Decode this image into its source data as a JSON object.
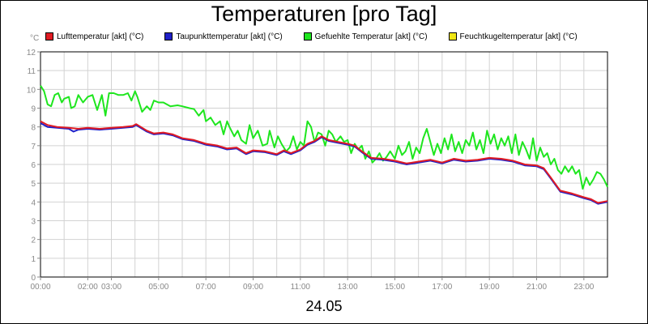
{
  "chart_data": {
    "type": "line",
    "title": "Temperaturen [pro Tag]",
    "date_label": "24.05",
    "unit": "°C",
    "ylim": [
      0,
      12
    ],
    "y_ticks": [
      "0",
      "1",
      "2",
      "3",
      "4",
      "5",
      "6",
      "7",
      "8",
      "9",
      "10",
      "11",
      "12"
    ],
    "x_range_hours": [
      0,
      24
    ],
    "x_ticks": [
      {
        "hour": 0,
        "label": "00:00"
      },
      {
        "hour": 2,
        "label": "02:00"
      },
      {
        "hour": 3,
        "label": "03:00"
      },
      {
        "hour": 5,
        "label": "05:00"
      },
      {
        "hour": 7,
        "label": "07:00"
      },
      {
        "hour": 9,
        "label": "09:00"
      },
      {
        "hour": 11,
        "label": "11:00"
      },
      {
        "hour": 13,
        "label": "13:00"
      },
      {
        "hour": 15,
        "label": "15:00"
      },
      {
        "hour": 17,
        "label": "17:00"
      },
      {
        "hour": 19,
        "label": "19:00"
      },
      {
        "hour": 21,
        "label": "21:00"
      },
      {
        "hour": 23,
        "label": "23:00"
      }
    ],
    "grid": true,
    "legend_position": "top",
    "series": [
      {
        "name": "Lufttemperatur [akt] (°C)",
        "color": "#e01b23",
        "points": [
          [
            0,
            8.3
          ],
          [
            0.3,
            8.1
          ],
          [
            0.7,
            8.0
          ],
          [
            1.2,
            7.95
          ],
          [
            1.6,
            7.9
          ],
          [
            2.0,
            7.95
          ],
          [
            2.5,
            7.9
          ],
          [
            3.0,
            7.95
          ],
          [
            3.5,
            8.0
          ],
          [
            3.9,
            8.05
          ],
          [
            4.05,
            8.15
          ],
          [
            4.5,
            7.8
          ],
          [
            4.8,
            7.65
          ],
          [
            5.2,
            7.7
          ],
          [
            5.6,
            7.6
          ],
          [
            6.0,
            7.4
          ],
          [
            6.5,
            7.3
          ],
          [
            7.0,
            7.1
          ],
          [
            7.5,
            7.0
          ],
          [
            7.9,
            6.85
          ],
          [
            8.3,
            6.9
          ],
          [
            8.7,
            6.6
          ],
          [
            9.0,
            6.75
          ],
          [
            9.5,
            6.7
          ],
          [
            10.0,
            6.55
          ],
          [
            10.3,
            6.75
          ],
          [
            10.6,
            6.6
          ],
          [
            11.0,
            6.8
          ],
          [
            11.3,
            7.1
          ],
          [
            11.6,
            7.25
          ],
          [
            11.9,
            7.5
          ],
          [
            12.2,
            7.3
          ],
          [
            12.6,
            7.2
          ],
          [
            13.0,
            7.1
          ],
          [
            13.3,
            7.0
          ],
          [
            13.6,
            6.7
          ],
          [
            14.0,
            6.35
          ],
          [
            14.5,
            6.3
          ],
          [
            15.0,
            6.2
          ],
          [
            15.5,
            6.05
          ],
          [
            16.0,
            6.15
          ],
          [
            16.5,
            6.25
          ],
          [
            17.0,
            6.1
          ],
          [
            17.5,
            6.3
          ],
          [
            18.0,
            6.2
          ],
          [
            18.5,
            6.25
          ],
          [
            19.0,
            6.35
          ],
          [
            19.5,
            6.3
          ],
          [
            20.0,
            6.2
          ],
          [
            20.5,
            6.0
          ],
          [
            21.0,
            5.95
          ],
          [
            21.3,
            5.8
          ],
          [
            21.6,
            5.3
          ],
          [
            22.0,
            4.6
          ],
          [
            22.5,
            4.45
          ],
          [
            23.0,
            4.25
          ],
          [
            23.3,
            4.15
          ],
          [
            23.6,
            3.95
          ],
          [
            24.0,
            4.05
          ]
        ]
      },
      {
        "name": "Taupunkttemperatur [akt] (°C)",
        "color": "#2020c8",
        "points": [
          [
            0,
            8.2
          ],
          [
            0.3,
            8.0
          ],
          [
            0.7,
            7.95
          ],
          [
            1.2,
            7.9
          ],
          [
            1.4,
            7.75
          ],
          [
            1.6,
            7.85
          ],
          [
            2.0,
            7.9
          ],
          [
            2.5,
            7.85
          ],
          [
            3.0,
            7.9
          ],
          [
            3.5,
            7.95
          ],
          [
            3.9,
            8.0
          ],
          [
            4.05,
            8.1
          ],
          [
            4.5,
            7.75
          ],
          [
            4.8,
            7.6
          ],
          [
            5.2,
            7.65
          ],
          [
            5.6,
            7.55
          ],
          [
            6.0,
            7.35
          ],
          [
            6.5,
            7.25
          ],
          [
            7.0,
            7.05
          ],
          [
            7.5,
            6.95
          ],
          [
            7.9,
            6.8
          ],
          [
            8.3,
            6.85
          ],
          [
            8.7,
            6.55
          ],
          [
            9.0,
            6.7
          ],
          [
            9.5,
            6.65
          ],
          [
            10.0,
            6.5
          ],
          [
            10.3,
            6.7
          ],
          [
            10.6,
            6.55
          ],
          [
            11.0,
            6.75
          ],
          [
            11.3,
            7.05
          ],
          [
            11.6,
            7.2
          ],
          [
            11.9,
            7.45
          ],
          [
            12.2,
            7.25
          ],
          [
            12.6,
            7.15
          ],
          [
            13.0,
            7.05
          ],
          [
            13.3,
            6.95
          ],
          [
            13.6,
            6.65
          ],
          [
            14.0,
            6.3
          ],
          [
            14.5,
            6.25
          ],
          [
            15.0,
            6.15
          ],
          [
            15.5,
            6.0
          ],
          [
            16.0,
            6.1
          ],
          [
            16.5,
            6.2
          ],
          [
            17.0,
            6.05
          ],
          [
            17.5,
            6.25
          ],
          [
            18.0,
            6.15
          ],
          [
            18.5,
            6.2
          ],
          [
            19.0,
            6.3
          ],
          [
            19.5,
            6.25
          ],
          [
            20.0,
            6.15
          ],
          [
            20.5,
            5.95
          ],
          [
            21.0,
            5.9
          ],
          [
            21.3,
            5.75
          ],
          [
            21.6,
            5.25
          ],
          [
            22.0,
            4.55
          ],
          [
            22.5,
            4.4
          ],
          [
            23.0,
            4.2
          ],
          [
            23.3,
            4.1
          ],
          [
            23.6,
            3.9
          ],
          [
            24.0,
            4.0
          ]
        ]
      },
      {
        "name": "Gefuehlte Temperatur [akt] (°C)",
        "color": "#1ee61e",
        "points": [
          [
            0,
            10.2
          ],
          [
            0.15,
            9.9
          ],
          [
            0.3,
            9.2
          ],
          [
            0.45,
            9.1
          ],
          [
            0.6,
            9.7
          ],
          [
            0.75,
            9.8
          ],
          [
            0.9,
            9.3
          ],
          [
            1.0,
            9.5
          ],
          [
            1.2,
            9.6
          ],
          [
            1.3,
            9.0
          ],
          [
            1.45,
            9.1
          ],
          [
            1.6,
            9.7
          ],
          [
            1.8,
            9.3
          ],
          [
            2.0,
            9.6
          ],
          [
            2.2,
            9.7
          ],
          [
            2.4,
            8.9
          ],
          [
            2.6,
            9.7
          ],
          [
            2.75,
            8.6
          ],
          [
            2.9,
            9.8
          ],
          [
            3.1,
            9.8
          ],
          [
            3.3,
            9.7
          ],
          [
            3.5,
            9.7
          ],
          [
            3.7,
            9.8
          ],
          [
            3.85,
            9.4
          ],
          [
            4.0,
            9.9
          ],
          [
            4.1,
            9.6
          ],
          [
            4.3,
            8.8
          ],
          [
            4.5,
            9.1
          ],
          [
            4.65,
            8.9
          ],
          [
            4.8,
            9.4
          ],
          [
            5.0,
            9.3
          ],
          [
            5.2,
            9.3
          ],
          [
            5.5,
            9.1
          ],
          [
            5.8,
            9.15
          ],
          [
            6.0,
            9.1
          ],
          [
            6.3,
            9.0
          ],
          [
            6.5,
            8.95
          ],
          [
            6.7,
            8.6
          ],
          [
            6.9,
            8.9
          ],
          [
            7.0,
            8.3
          ],
          [
            7.2,
            8.5
          ],
          [
            7.4,
            8.1
          ],
          [
            7.6,
            8.3
          ],
          [
            7.75,
            7.6
          ],
          [
            7.9,
            8.3
          ],
          [
            8.0,
            8.0
          ],
          [
            8.2,
            7.5
          ],
          [
            8.35,
            7.8
          ],
          [
            8.5,
            7.3
          ],
          [
            8.7,
            7.1
          ],
          [
            8.85,
            8.1
          ],
          [
            9.0,
            7.4
          ],
          [
            9.2,
            7.8
          ],
          [
            9.4,
            7.0
          ],
          [
            9.6,
            7.1
          ],
          [
            9.7,
            7.8
          ],
          [
            9.9,
            6.9
          ],
          [
            10.05,
            7.5
          ],
          [
            10.2,
            7.1
          ],
          [
            10.4,
            6.7
          ],
          [
            10.55,
            6.9
          ],
          [
            10.7,
            7.5
          ],
          [
            10.85,
            6.8
          ],
          [
            11.0,
            7.2
          ],
          [
            11.15,
            7.0
          ],
          [
            11.3,
            8.3
          ],
          [
            11.45,
            8.0
          ],
          [
            11.6,
            7.2
          ],
          [
            11.75,
            7.7
          ],
          [
            11.9,
            7.6
          ],
          [
            12.05,
            7.0
          ],
          [
            12.2,
            7.8
          ],
          [
            12.35,
            7.6
          ],
          [
            12.5,
            7.2
          ],
          [
            12.7,
            7.5
          ],
          [
            12.85,
            7.2
          ],
          [
            13.0,
            7.3
          ],
          [
            13.15,
            6.6
          ],
          [
            13.3,
            7.1
          ],
          [
            13.45,
            6.8
          ],
          [
            13.6,
            7.0
          ],
          [
            13.75,
            6.3
          ],
          [
            13.9,
            6.7
          ],
          [
            14.05,
            6.1
          ],
          [
            14.2,
            6.3
          ],
          [
            14.35,
            6.6
          ],
          [
            14.5,
            6.2
          ],
          [
            14.65,
            6.4
          ],
          [
            14.8,
            6.7
          ],
          [
            15.0,
            6.3
          ],
          [
            15.15,
            7.0
          ],
          [
            15.3,
            6.5
          ],
          [
            15.45,
            6.7
          ],
          [
            15.6,
            7.2
          ],
          [
            15.75,
            6.3
          ],
          [
            15.9,
            6.9
          ],
          [
            16.05,
            6.6
          ],
          [
            16.2,
            7.4
          ],
          [
            16.35,
            7.9
          ],
          [
            16.5,
            7.2
          ],
          [
            16.65,
            6.5
          ],
          [
            16.8,
            7.1
          ],
          [
            16.95,
            6.6
          ],
          [
            17.1,
            7.4
          ],
          [
            17.25,
            6.8
          ],
          [
            17.4,
            7.6
          ],
          [
            17.55,
            6.7
          ],
          [
            17.7,
            7.2
          ],
          [
            17.85,
            6.6
          ],
          [
            18.0,
            7.3
          ],
          [
            18.15,
            7.0
          ],
          [
            18.3,
            7.7
          ],
          [
            18.45,
            6.8
          ],
          [
            18.6,
            7.3
          ],
          [
            18.75,
            6.6
          ],
          [
            18.9,
            7.8
          ],
          [
            19.05,
            7.1
          ],
          [
            19.2,
            7.6
          ],
          [
            19.35,
            6.8
          ],
          [
            19.5,
            7.4
          ],
          [
            19.65,
            7.0
          ],
          [
            19.8,
            7.5
          ],
          [
            19.95,
            6.6
          ],
          [
            20.1,
            7.6
          ],
          [
            20.25,
            6.5
          ],
          [
            20.4,
            7.2
          ],
          [
            20.55,
            6.8
          ],
          [
            20.7,
            6.3
          ],
          [
            20.85,
            7.4
          ],
          [
            21.0,
            6.2
          ],
          [
            21.15,
            6.9
          ],
          [
            21.3,
            6.4
          ],
          [
            21.45,
            6.6
          ],
          [
            21.6,
            6.0
          ],
          [
            21.75,
            6.3
          ],
          [
            21.9,
            5.7
          ],
          [
            22.05,
            5.5
          ],
          [
            22.2,
            5.9
          ],
          [
            22.35,
            5.6
          ],
          [
            22.5,
            5.9
          ],
          [
            22.65,
            5.5
          ],
          [
            22.8,
            5.7
          ],
          [
            22.95,
            4.7
          ],
          [
            23.1,
            5.3
          ],
          [
            23.25,
            4.9
          ],
          [
            23.4,
            5.2
          ],
          [
            23.55,
            5.6
          ],
          [
            23.7,
            5.5
          ],
          [
            23.85,
            5.2
          ],
          [
            24.0,
            4.8
          ]
        ]
      },
      {
        "name": "Feuchtkugeltemperatur [akt] (°C)",
        "color": "#f0e614",
        "points": []
      }
    ]
  }
}
